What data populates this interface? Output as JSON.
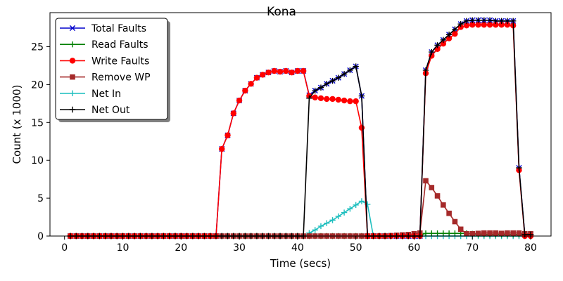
{
  "chart_data": {
    "type": "line",
    "title": "Kona",
    "xlabel": "Time (secs)",
    "ylabel": "Count (x 1000)",
    "xlim": [
      -2.5,
      83.5
    ],
    "ylim": [
      0,
      29.5
    ],
    "xticks": [
      0,
      10,
      20,
      30,
      40,
      50,
      60,
      70,
      80
    ],
    "yticks": [
      0,
      5,
      10,
      15,
      20,
      25
    ],
    "grid": false,
    "legend": "top-left",
    "series": [
      {
        "name": "Total Faults",
        "color": "#0000cc",
        "marker": "x",
        "x": [
          1,
          2,
          3,
          4,
          5,
          6,
          7,
          8,
          9,
          10,
          11,
          12,
          13,
          14,
          15,
          16,
          17,
          18,
          19,
          20,
          21,
          22,
          23,
          24,
          25,
          26,
          27,
          28,
          29,
          30,
          31,
          32,
          33,
          34,
          35,
          36,
          37,
          38,
          39,
          40,
          41,
          42,
          43,
          44,
          45,
          46,
          47,
          48,
          49,
          50,
          51,
          52,
          53,
          54,
          55,
          56,
          57,
          58,
          59,
          60,
          61,
          62,
          63,
          64,
          65,
          66,
          67,
          68,
          69,
          70,
          71,
          72,
          73,
          74,
          75,
          76,
          77,
          78,
          79,
          80
        ],
        "y": [
          0,
          0,
          0,
          0,
          0,
          0,
          0,
          0,
          0,
          0,
          0,
          0,
          0,
          0,
          0,
          0,
          0,
          0,
          0,
          0,
          0,
          0,
          0,
          0,
          0,
          0,
          11.5,
          13.3,
          16.2,
          17.9,
          19.2,
          20.1,
          20.9,
          21.3,
          21.6,
          21.8,
          21.7,
          21.8,
          21.6,
          21.8,
          21.8,
          18.6,
          19.2,
          19.6,
          20.1,
          20.5,
          20.9,
          21.4,
          21.9,
          22.4,
          18.5,
          0,
          0,
          0,
          0,
          0,
          0,
          0,
          0,
          0,
          0,
          21.9,
          24.3,
          25.2,
          25.9,
          26.6,
          27.3,
          28.0,
          28.4,
          28.5,
          28.5,
          28.5,
          28.5,
          28.4,
          28.4,
          28.4,
          28.4,
          9.0,
          0.2,
          0.2
        ]
      },
      {
        "name": "Read Faults",
        "color": "#008000",
        "marker": "+",
        "x": [
          1,
          2,
          3,
          4,
          5,
          6,
          7,
          8,
          9,
          10,
          11,
          12,
          13,
          14,
          15,
          16,
          17,
          18,
          19,
          20,
          21,
          22,
          23,
          24,
          25,
          26,
          27,
          28,
          29,
          30,
          31,
          32,
          33,
          34,
          35,
          36,
          37,
          38,
          39,
          40,
          41,
          42,
          43,
          44,
          45,
          46,
          47,
          48,
          49,
          50,
          51,
          52,
          53,
          54,
          55,
          56,
          57,
          58,
          59,
          60,
          61,
          62,
          63,
          64,
          65,
          66,
          67,
          68,
          69,
          70,
          71,
          72,
          73,
          74,
          75,
          76,
          77,
          78,
          79,
          80
        ],
        "y": [
          0,
          0,
          0,
          0,
          0,
          0,
          0,
          0,
          0,
          0,
          0,
          0,
          0,
          0,
          0,
          0,
          0,
          0,
          0,
          0,
          0,
          0,
          0,
          0,
          0,
          0,
          0,
          0,
          0,
          0,
          0,
          0,
          0,
          0,
          0,
          0,
          0,
          0,
          0,
          0,
          0,
          0,
          0,
          0,
          0,
          0,
          0,
          0,
          0,
          0,
          0,
          0,
          0,
          0,
          0,
          0,
          0,
          0,
          0,
          0,
          0.1,
          0.35,
          0.35,
          0.35,
          0.35,
          0.35,
          0.35,
          0.35,
          0.35,
          0.3,
          0.2,
          0.2,
          0.2,
          0.2,
          0.2,
          0.2,
          0.2,
          0.2,
          0.2,
          0.2
        ]
      },
      {
        "name": "Write Faults",
        "color": "#ff0000",
        "marker": "o",
        "x": [
          1,
          2,
          3,
          4,
          5,
          6,
          7,
          8,
          9,
          10,
          11,
          12,
          13,
          14,
          15,
          16,
          17,
          18,
          19,
          20,
          21,
          22,
          23,
          24,
          25,
          26,
          27,
          28,
          29,
          30,
          31,
          32,
          33,
          34,
          35,
          36,
          37,
          38,
          39,
          40,
          41,
          42,
          43,
          44,
          45,
          46,
          47,
          48,
          49,
          50,
          51,
          52,
          53,
          54,
          55,
          56,
          57,
          58,
          59,
          60,
          61,
          62,
          63,
          64,
          65,
          66,
          67,
          68,
          69,
          70,
          71,
          72,
          73,
          74,
          75,
          76,
          77,
          78,
          79,
          80
        ],
        "y": [
          0,
          0,
          0,
          0,
          0,
          0,
          0,
          0,
          0,
          0,
          0,
          0,
          0,
          0,
          0,
          0,
          0,
          0,
          0,
          0,
          0,
          0,
          0,
          0,
          0,
          0,
          11.5,
          13.3,
          16.2,
          17.9,
          19.2,
          20.1,
          20.9,
          21.3,
          21.6,
          21.8,
          21.7,
          21.8,
          21.6,
          21.8,
          21.8,
          18.5,
          18.3,
          18.2,
          18.1,
          18.1,
          18.0,
          17.9,
          17.8,
          17.8,
          14.3,
          0,
          0,
          0,
          0,
          0,
          0,
          0,
          0,
          0,
          0,
          21.5,
          23.8,
          24.7,
          25.4,
          26.1,
          26.7,
          27.6,
          27.8,
          27.9,
          27.9,
          27.9,
          27.9,
          27.9,
          27.9,
          27.9,
          27.8,
          8.7,
          0,
          0
        ]
      },
      {
        "name": "Remove WP",
        "color": "#a52a2a",
        "marker": "s",
        "x": [
          1,
          2,
          3,
          4,
          5,
          6,
          7,
          8,
          9,
          10,
          11,
          12,
          13,
          14,
          15,
          16,
          17,
          18,
          19,
          20,
          21,
          22,
          23,
          24,
          25,
          26,
          27,
          28,
          29,
          30,
          31,
          32,
          33,
          34,
          35,
          36,
          37,
          38,
          39,
          40,
          41,
          42,
          43,
          44,
          45,
          46,
          47,
          48,
          49,
          50,
          51,
          52,
          53,
          54,
          55,
          56,
          57,
          58,
          59,
          60,
          61,
          62,
          63,
          64,
          65,
          66,
          67,
          68,
          69,
          70,
          71,
          72,
          73,
          74,
          75,
          76,
          77,
          78,
          79,
          80
        ],
        "y": [
          0,
          0,
          0,
          0,
          0,
          0,
          0,
          0,
          0,
          0,
          0,
          0,
          0,
          0,
          0,
          0,
          0,
          0,
          0,
          0,
          0,
          0,
          0,
          0,
          0,
          0,
          0,
          0,
          0,
          0,
          0,
          0,
          0,
          0,
          0,
          0,
          0,
          0,
          0,
          0,
          0,
          0,
          0,
          0,
          0,
          0,
          0,
          0,
          0,
          0,
          0,
          0,
          0,
          0,
          0,
          0.05,
          0.1,
          0.15,
          0.2,
          0.3,
          0.4,
          7.3,
          6.4,
          5.3,
          4.1,
          3.0,
          1.9,
          0.9,
          0.3,
          0.3,
          0.35,
          0.4,
          0.4,
          0.4,
          0.35,
          0.4,
          0.4,
          0.4,
          0.3,
          0.3
        ]
      },
      {
        "name": "Net In",
        "color": "#1fbfbf",
        "marker": "+",
        "x": [
          1,
          2,
          3,
          4,
          5,
          6,
          7,
          8,
          9,
          10,
          11,
          12,
          13,
          14,
          15,
          16,
          17,
          18,
          19,
          20,
          21,
          22,
          23,
          24,
          25,
          26,
          27,
          28,
          29,
          30,
          31,
          32,
          33,
          34,
          35,
          36,
          37,
          38,
          39,
          40,
          41,
          42,
          43,
          44,
          45,
          46,
          47,
          48,
          49,
          50,
          51,
          52,
          53,
          54,
          55,
          56,
          57,
          58,
          59,
          60,
          61,
          62,
          63,
          64,
          65,
          66,
          67,
          68,
          69,
          70,
          71,
          72,
          73,
          74,
          75,
          76,
          77,
          78,
          79,
          80
        ],
        "y": [
          0,
          0,
          0,
          0,
          0,
          0,
          0,
          0,
          0,
          0,
          0,
          0,
          0,
          0,
          0,
          0,
          0,
          0,
          0,
          0,
          0,
          0,
          0,
          0,
          0,
          0,
          0,
          0,
          0,
          0,
          0,
          0,
          0,
          0,
          0,
          0,
          0,
          0,
          0,
          0,
          0,
          0.4,
          0.8,
          1.3,
          1.7,
          2.1,
          2.6,
          3.1,
          3.6,
          4.1,
          4.6,
          4.2,
          0,
          0,
          0,
          0,
          0,
          0,
          0,
          0,
          0,
          0,
          0,
          0,
          0,
          0,
          0,
          0,
          0,
          0,
          0,
          0,
          0,
          0,
          0,
          0,
          0,
          0,
          0,
          0
        ]
      },
      {
        "name": "Net Out",
        "color": "#000000",
        "marker": "+",
        "x": [
          1,
          2,
          3,
          4,
          5,
          6,
          7,
          8,
          9,
          10,
          11,
          12,
          13,
          14,
          15,
          16,
          17,
          18,
          19,
          20,
          21,
          22,
          23,
          24,
          25,
          26,
          27,
          28,
          29,
          30,
          31,
          32,
          33,
          34,
          35,
          36,
          37,
          38,
          39,
          40,
          41,
          42,
          43,
          44,
          45,
          46,
          47,
          48,
          49,
          50,
          51,
          52,
          53,
          54,
          55,
          56,
          57,
          58,
          59,
          60,
          61,
          62,
          63,
          64,
          65,
          66,
          67,
          68,
          69,
          70,
          71,
          72,
          73,
          74,
          75,
          76,
          77,
          78,
          79,
          80
        ],
        "y": [
          0,
          0,
          0,
          0,
          0,
          0,
          0,
          0,
          0,
          0,
          0,
          0,
          0,
          0,
          0,
          0,
          0,
          0,
          0,
          0,
          0,
          0,
          0,
          0,
          0,
          0,
          0,
          0,
          0,
          0,
          0,
          0,
          0,
          0,
          0,
          0,
          0,
          0,
          0,
          0,
          0,
          18.2,
          19.2,
          19.6,
          20.1,
          20.5,
          20.9,
          21.4,
          21.9,
          22.4,
          18.5,
          0,
          0,
          0,
          0,
          0,
          0,
          0,
          0,
          0,
          0,
          21.9,
          24.3,
          25.2,
          25.9,
          26.6,
          27.3,
          28.0,
          28.4,
          28.5,
          28.5,
          28.5,
          28.5,
          28.4,
          28.4,
          28.4,
          28.4,
          9.0,
          0.2,
          0.2
        ]
      }
    ]
  }
}
